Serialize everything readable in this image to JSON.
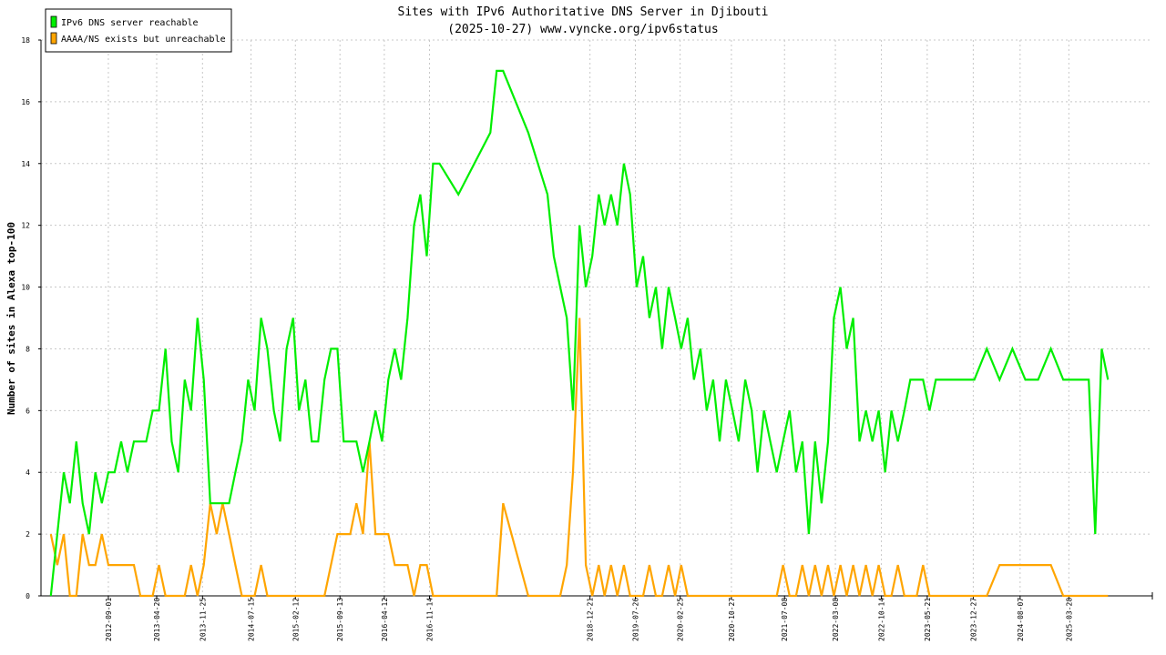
{
  "chart_data": {
    "type": "line",
    "title": "Sites with IPv6 Authoritative DNS Server in Djibouti",
    "subtitle": "(2025-10-27) www.vyncke.org/ipv6status",
    "y_label": "Number of sites in Alexa top-100",
    "legend": "upper left",
    "grid": true,
    "xlim": [
      "2011-10-15",
      "2026-05-01"
    ],
    "ylim": [
      0,
      18
    ],
    "yticks": [
      0,
      2,
      4,
      6,
      8,
      10,
      12,
      14,
      16,
      18
    ],
    "xticks": [
      "2012-09-01",
      "2013-04-20",
      "2013-11-25",
      "2014-07-15",
      "2015-02-12",
      "2015-09-13",
      "2016-04-12",
      "2016-11-14",
      "2018-12-21",
      "2019-07-26",
      "2020-02-25",
      "2020-10-27",
      "2021-07-08",
      "2022-03-08",
      "2022-10-14",
      "2023-05-21",
      "2023-12-27",
      "2024-08-07",
      "2025-03-28"
    ],
    "x": [
      "2011-12-01",
      "2012-01-01",
      "2012-02-01",
      "2012-03-01",
      "2012-04-01",
      "2012-05-01",
      "2012-06-01",
      "2012-07-01",
      "2012-08-01",
      "2012-09-01",
      "2012-10-01",
      "2012-11-01",
      "2012-12-01",
      "2013-01-01",
      "2013-02-01",
      "2013-03-01",
      "2013-04-01",
      "2013-05-01",
      "2013-06-01",
      "2013-07-01",
      "2013-08-01",
      "2013-09-01",
      "2013-10-01",
      "2013-11-01",
      "2013-12-01",
      "2014-01-01",
      "2014-02-01",
      "2014-03-01",
      "2014-04-01",
      "2014-05-01",
      "2014-06-01",
      "2014-07-01",
      "2014-08-01",
      "2014-09-01",
      "2014-10-01",
      "2014-11-01",
      "2014-12-01",
      "2015-01-01",
      "2015-02-01",
      "2015-03-01",
      "2015-04-01",
      "2015-05-01",
      "2015-06-01",
      "2015-07-01",
      "2015-08-01",
      "2015-09-01",
      "2015-10-01",
      "2015-11-01",
      "2015-12-01",
      "2016-01-01",
      "2016-02-01",
      "2016-03-01",
      "2016-04-01",
      "2016-05-01",
      "2016-06-01",
      "2016-07-01",
      "2016-08-01",
      "2016-09-01",
      "2016-10-01",
      "2016-11-01",
      "2016-12-01",
      "2017-01-01",
      "2017-04-01",
      "2017-09-01",
      "2017-10-01",
      "2017-11-01",
      "2018-03-01",
      "2018-06-01",
      "2018-07-01",
      "2018-08-01",
      "2018-09-01",
      "2018-10-01",
      "2018-11-01",
      "2018-12-01",
      "2019-01-01",
      "2019-02-01",
      "2019-03-01",
      "2019-04-01",
      "2019-05-01",
      "2019-06-01",
      "2019-07-01",
      "2019-08-01",
      "2019-09-01",
      "2019-10-01",
      "2019-11-01",
      "2019-12-01",
      "2020-01-01",
      "2020-02-01",
      "2020-03-01",
      "2020-04-01",
      "2020-05-01",
      "2020-06-01",
      "2020-07-01",
      "2020-08-01",
      "2020-09-01",
      "2020-10-01",
      "2020-11-01",
      "2020-12-01",
      "2021-01-01",
      "2021-02-01",
      "2021-03-01",
      "2021-04-01",
      "2021-05-01",
      "2021-06-01",
      "2021-07-01",
      "2021-08-01",
      "2021-09-01",
      "2021-10-01",
      "2021-11-01",
      "2021-12-01",
      "2022-01-01",
      "2022-02-01",
      "2022-03-01",
      "2022-04-01",
      "2022-05-01",
      "2022-06-01",
      "2022-07-01",
      "2022-08-01",
      "2022-09-01",
      "2022-10-01",
      "2022-11-01",
      "2022-12-01",
      "2023-01-01",
      "2023-02-01",
      "2023-03-01",
      "2023-04-01",
      "2023-05-01",
      "2023-06-01",
      "2023-07-01",
      "2023-09-01",
      "2023-11-01",
      "2024-01-01",
      "2024-03-01",
      "2024-05-01",
      "2024-07-01",
      "2024-09-01",
      "2024-11-01",
      "2025-01-01",
      "2025-03-01",
      "2025-05-01",
      "2025-07-01",
      "2025-08-01",
      "2025-09-01",
      "2025-10-01"
    ],
    "series": [
      {
        "name": "IPv6 DNS server reachable",
        "color": "#00ee00",
        "values": [
          0,
          2,
          4,
          3,
          5,
          3,
          2,
          4,
          3,
          4,
          4,
          5,
          4,
          5,
          5,
          5,
          6,
          6,
          8,
          5,
          4,
          7,
          6,
          9,
          7,
          3,
          3,
          3,
          3,
          4,
          5,
          7,
          6,
          9,
          8,
          6,
          5,
          8,
          9,
          6,
          7,
          5,
          5,
          7,
          8,
          8,
          5,
          5,
          5,
          4,
          5,
          6,
          5,
          7,
          8,
          7,
          9,
          12,
          13,
          11,
          14,
          14,
          13,
          15,
          17,
          17,
          15,
          13,
          11,
          10,
          9,
          6,
          12,
          10,
          11,
          13,
          12,
          13,
          12,
          14,
          13,
          10,
          11,
          9,
          10,
          8,
          10,
          9,
          8,
          9,
          7,
          8,
          6,
          7,
          5,
          7,
          6,
          5,
          7,
          6,
          4,
          6,
          5,
          4,
          5,
          6,
          4,
          5,
          2,
          5,
          3,
          5,
          9,
          10,
          8,
          9,
          5,
          6,
          5,
          6,
          4,
          6,
          5,
          6,
          7,
          7,
          7,
          6,
          7,
          7,
          7,
          7,
          8,
          7,
          8,
          7,
          7,
          8,
          7,
          7,
          7,
          2,
          8,
          7
        ]
      },
      {
        "name": "AAAA/NS exists but unreachable",
        "color": "#ffa500",
        "values": [
          2,
          1,
          2,
          0,
          0,
          2,
          1,
          1,
          2,
          1,
          1,
          1,
          1,
          1,
          0,
          0,
          0,
          1,
          0,
          0,
          0,
          0,
          1,
          0,
          1,
          3,
          2,
          3,
          2,
          1,
          0,
          0,
          0,
          1,
          0,
          0,
          0,
          0,
          0,
          0,
          0,
          0,
          0,
          0,
          1,
          2,
          2,
          2,
          3,
          2,
          5,
          2,
          2,
          2,
          1,
          1,
          1,
          0,
          1,
          1,
          0,
          0,
          0,
          0,
          0,
          3,
          0,
          0,
          0,
          0,
          1,
          4,
          9,
          1,
          0,
          1,
          0,
          1,
          0,
          1,
          0,
          0,
          0,
          1,
          0,
          0,
          1,
          0,
          1,
          0,
          0,
          0,
          0,
          0,
          0,
          0,
          0,
          0,
          0,
          0,
          0,
          0,
          0,
          0,
          1,
          0,
          0,
          1,
          0,
          1,
          0,
          1,
          0,
          1,
          0,
          1,
          0,
          1,
          0,
          1,
          0,
          0,
          1,
          0,
          0,
          0,
          1,
          0,
          0,
          0,
          0,
          0,
          0,
          1,
          1,
          1,
          1,
          1,
          0,
          0,
          0,
          0,
          0,
          0
        ]
      }
    ]
  }
}
